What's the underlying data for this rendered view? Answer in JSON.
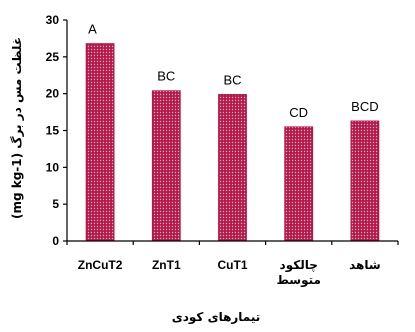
{
  "chart_data": {
    "type": "bar",
    "categories": [
      "ZnCuT2",
      "ZnT1",
      "CuT1",
      "چالکود متوسط",
      "شاهد"
    ],
    "category_lines": [
      [
        "ZnCuT2"
      ],
      [
        "ZnT1"
      ],
      [
        "CuT1"
      ],
      [
        "چالکود",
        "متوسط"
      ],
      [
        "شاهد"
      ]
    ],
    "values": [
      26.8,
      20.4,
      19.9,
      15.5,
      16.3
    ],
    "significance_letters": [
      "A",
      "BC",
      "BC",
      "CD",
      "BCD"
    ],
    "title": "",
    "xlabel": "تیمارهای کودی",
    "ylabel": "غلظت مس در برگ (mg kg-1)",
    "ylim": [
      0,
      30
    ],
    "yticks": [
      0,
      5,
      10,
      15,
      20,
      25,
      30
    ],
    "grid": false,
    "legend": "none",
    "bar_color": "#b5174a",
    "bar_pattern_color": "#e8b0c0"
  }
}
